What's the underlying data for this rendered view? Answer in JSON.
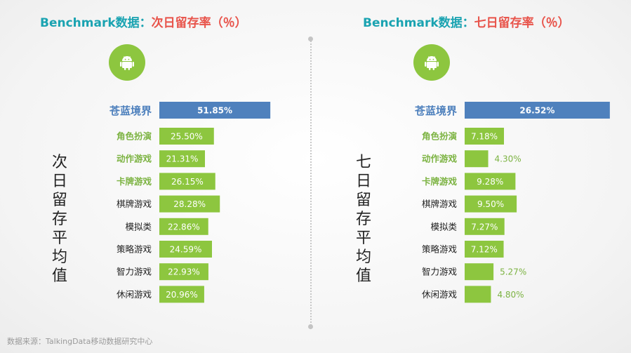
{
  "left_title": {
    "prefix": "Benchmark数据：",
    "metric": "次日留存率（％）"
  },
  "right_title": {
    "prefix": "Benchmark数据：",
    "metric": "七日留存率（％）"
  },
  "icon": "android-icon",
  "left_axis_label": "次日留存平均值",
  "right_axis_label": "七日留存平均值",
  "source": "数据来源：TalkingData移动数据研究中心",
  "colors": {
    "highlight_bar": "#4f81bd",
    "bar": "#8dc63f",
    "highlight_label": "#4f81bd",
    "green_label": "#7cb342",
    "plain_label": "#222222",
    "title_prefix": "#1aa3b1",
    "title_metric": "#e8534a"
  },
  "chart_data": [
    {
      "type": "bar",
      "orientation": "horizontal",
      "categories": [
        "苍蓝境界",
        "角色扮演",
        "动作游戏",
        "卡牌游戏",
        "棋牌游戏",
        "模拟类",
        "策略游戏",
        "智力游戏",
        "休闲游戏"
      ],
      "values": [
        51.85,
        25.5,
        21.31,
        26.15,
        28.28,
        22.86,
        24.59,
        22.93,
        20.96
      ],
      "data_labels": [
        "51.85%",
        "25.50%",
        "21.31%",
        "26.15%",
        "28.28%",
        "22.86%",
        "24.59%",
        "22.93%",
        "20.96%"
      ],
      "highlight": [
        "苍蓝境界"
      ],
      "green_categories": [
        "角色扮演",
        "动作游戏",
        "卡牌游戏"
      ]
    },
    {
      "type": "bar",
      "orientation": "horizontal",
      "categories": [
        "苍蓝境界",
        "角色扮演",
        "动作游戏",
        "卡牌游戏",
        "棋牌游戏",
        "模拟类",
        "策略游戏",
        "智力游戏",
        "休闲游戏"
      ],
      "values": [
        26.52,
        7.18,
        4.3,
        9.28,
        9.5,
        7.27,
        7.12,
        5.27,
        4.8
      ],
      "data_labels": [
        "26.52%",
        "7.18%",
        "4.30%",
        "9.28%",
        "9.50%",
        "7.27%",
        "7.12%",
        "5.27%",
        "4.80%"
      ],
      "highlight": [
        "苍蓝境界"
      ],
      "green_categories": [
        "角色扮演",
        "动作游戏",
        "卡牌游戏"
      ]
    }
  ]
}
